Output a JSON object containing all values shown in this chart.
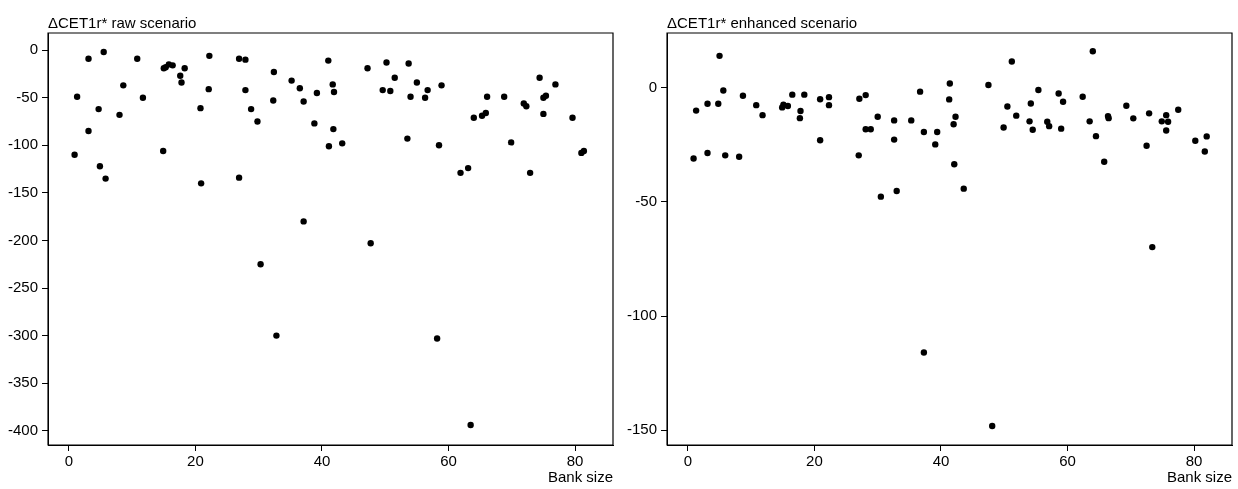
{
  "chart_data": [
    {
      "type": "scatter",
      "title": "ΔCET1r* raw scenario",
      "xlabel": "Bank size",
      "marker": "circle",
      "xlim": [
        -3.3,
        86
      ],
      "ylim": [
        -415,
        18
      ],
      "xticks": [
        0,
        20,
        40,
        60,
        80
      ],
      "yticks": [
        0,
        -50,
        -100,
        -150,
        -200,
        -250,
        -300,
        -350,
        -400
      ],
      "series": [
        {
          "color": "#000000",
          "x": [
            0.9,
            1.3,
            3.1,
            3.1,
            4.7,
            4.9,
            5.5,
            5.8,
            8.0,
            8.6,
            10.8,
            11.7,
            14.9,
            15.0,
            15.3,
            15.8,
            16.4,
            17.6,
            17.8,
            18.3,
            20.8,
            20.9,
            22.1,
            22.2,
            26.9,
            26.9,
            27.9,
            27.9,
            28.8,
            29.8,
            30.3,
            32.4,
            32.3,
            32.8,
            35.2,
            36.5,
            37.1,
            37.1,
            38.8,
            39.2,
            41.0,
            41.1,
            41.7,
            41.9,
            41.8,
            43.2,
            47.2,
            47.7,
            49.6,
            50.2,
            50.8,
            51.5,
            53.5,
            53.7,
            54.0,
            55.0,
            56.3,
            56.7,
            58.2,
            58.5,
            58.9,
            61.9,
            63.1,
            63.5,
            64.0,
            65.3,
            65.9,
            66.1,
            68.8,
            69.9,
            71.9,
            72.3,
            72.9,
            74.4,
            75.0,
            75.0,
            75.4,
            76.9,
            79.6,
            81.0,
            81.4
          ],
          "values": [
            -110,
            -49,
            -9,
            -85,
            -62,
            -122,
            -2,
            -135,
            -68,
            -37,
            -9,
            -50,
            -106,
            -19,
            -18,
            -15,
            -16,
            -27,
            -34,
            -19,
            -61,
            -140,
            -41,
            -6,
            -134,
            -9,
            -10,
            -42,
            -62,
            -75,
            -225,
            -23,
            -53,
            -300,
            -32,
            -40,
            -54,
            -180,
            -77,
            -45,
            -11,
            -101,
            -36,
            -44,
            -83,
            -98,
            -19,
            -203,
            -42,
            -13,
            -43,
            -29,
            -93,
            -14,
            -49,
            -34,
            -50,
            -42,
            -303,
            -100,
            -37,
            -129,
            -124,
            -394,
            -71,
            -69,
            -66,
            -49,
            -49,
            -97,
            -56,
            -59,
            -129,
            -29,
            -67,
            -50,
            -48,
            -36,
            -71,
            -108,
            -106
          ]
        }
      ]
    },
    {
      "type": "scatter",
      "title": "ΔCET1r* enhanced scenario",
      "xlabel": "Bank size",
      "marker": "circle",
      "xlim": [
        -3.3,
        86
      ],
      "ylim": [
        -156.5,
        24
      ],
      "xticks": [
        0,
        20,
        40,
        60,
        80
      ],
      "yticks": [
        0,
        -50,
        -100,
        -150
      ],
      "series": [
        {
          "color": "#000000",
          "x": [
            5.0,
            0.9,
            1.3,
            3.1,
            3.1,
            4.8,
            5.6,
            5.9,
            8.1,
            8.7,
            10.8,
            11.8,
            14.9,
            15.1,
            15.8,
            16.5,
            17.7,
            17.8,
            18.4,
            20.9,
            20.9,
            22.3,
            22.3,
            27.0,
            27.1,
            28.1,
            28.1,
            28.9,
            30.0,
            30.5,
            32.6,
            32.6,
            33.0,
            35.3,
            36.7,
            37.3,
            37.3,
            39.4,
            39.1,
            41.4,
            41.3,
            42.3,
            42.0,
            42.1,
            43.6,
            47.5,
            48.1,
            49.9,
            50.5,
            51.2,
            51.9,
            54.0,
            54.2,
            54.5,
            55.4,
            56.8,
            57.1,
            58.6,
            59.3,
            59.0,
            62.4,
            63.5,
            64.0,
            64.5,
            65.8,
            66.4,
            66.5,
            69.3,
            70.4,
            72.5,
            72.9,
            73.4,
            74.9,
            75.6,
            75.6,
            75.9,
            77.5,
            80.2,
            81.7,
            82.0
          ],
          "values": [
            14,
            -31,
            -10,
            -7,
            -28.6,
            -7,
            -1.2,
            -29.6,
            -30.2,
            -3.5,
            -7.6,
            -12,
            -8.6,
            -7.4,
            -8,
            -3,
            -13.3,
            -10.2,
            -3,
            -5,
            -23,
            -4.1,
            -7.6,
            -29.6,
            -4.8,
            -3.2,
            -18.2,
            -18.2,
            -12.7,
            -47.7,
            -14.3,
            -22.7,
            -45.2,
            -14.3,
            -1.7,
            -19.4,
            -116,
            -19.4,
            -24.8,
            1.9,
            -5.1,
            -12.7,
            -16,
            -33.5,
            -44.2,
            1.2,
            -148.2,
            -17.4,
            -8.2,
            11.5,
            -12.2,
            -14.7,
            -6.9,
            -18.4,
            -1,
            -14.9,
            -16.8,
            -2.5,
            -6.1,
            -17.9,
            -3.9,
            -14.7,
            16,
            -21.2,
            -32.4,
            -12.4,
            -13.3,
            -7.9,
            -13.4,
            -25.4,
            -11.2,
            -69.8,
            -14.7,
            -12,
            -18.7,
            -14.9,
            -9.6,
            -23.2,
            -27.9,
            -21.3
          ]
        }
      ]
    }
  ]
}
